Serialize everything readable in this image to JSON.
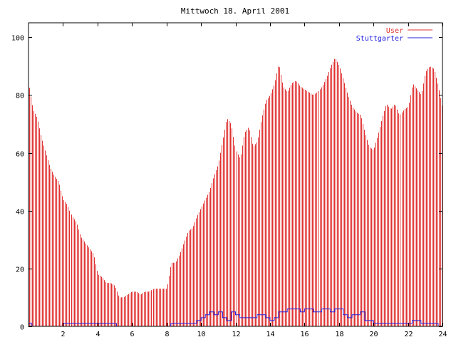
{
  "chart_data": {
    "type": "bar",
    "title": "Mittwoch 18. April 2001",
    "xlabel": "",
    "ylabel": "",
    "xlim": [
      0,
      24
    ],
    "ylim": [
      0,
      105
    ],
    "x_ticks": [
      2,
      4,
      6,
      8,
      10,
      12,
      14,
      16,
      18,
      20,
      22,
      24
    ],
    "y_ticks": [
      0,
      20,
      40,
      60,
      80,
      100
    ],
    "legend_position": "top-right",
    "grid": false,
    "series": [
      {
        "name": "User",
        "type": "bar",
        "color": "#e03030",
        "points": [
          [
            0,
            84
          ],
          [
            0.25,
            75
          ],
          [
            0.5,
            72
          ],
          [
            0.75,
            65
          ],
          [
            1,
            60
          ],
          [
            1.25,
            55
          ],
          [
            1.5,
            52
          ],
          [
            1.75,
            50
          ],
          [
            2,
            44
          ],
          [
            2.25,
            42
          ],
          [
            2.5,
            38
          ],
          [
            2.75,
            36
          ],
          [
            3,
            31
          ],
          [
            3.25,
            29
          ],
          [
            3.5,
            27
          ],
          [
            3.75,
            25
          ],
          [
            4,
            18
          ],
          [
            4.25,
            17
          ],
          [
            4.5,
            15
          ],
          [
            4.75,
            15
          ],
          [
            5,
            14
          ],
          [
            5.25,
            10
          ],
          [
            5.5,
            10
          ],
          [
            5.75,
            11
          ],
          [
            6,
            12
          ],
          [
            6.25,
            12
          ],
          [
            6.5,
            11
          ],
          [
            6.75,
            12
          ],
          [
            7,
            12
          ],
          [
            7.25,
            13
          ],
          [
            7.5,
            13
          ],
          [
            7.75,
            13
          ],
          [
            8,
            13
          ],
          [
            8.25,
            22
          ],
          [
            8.5,
            22
          ],
          [
            8.75,
            25
          ],
          [
            9,
            29
          ],
          [
            9.25,
            33
          ],
          [
            9.5,
            34
          ],
          [
            9.75,
            38
          ],
          [
            10,
            41
          ],
          [
            10.25,
            44
          ],
          [
            10.5,
            47
          ],
          [
            10.75,
            52
          ],
          [
            11,
            56
          ],
          [
            11.25,
            64
          ],
          [
            11.5,
            72
          ],
          [
            11.75,
            70
          ],
          [
            12,
            61
          ],
          [
            12.25,
            58
          ],
          [
            12.5,
            67
          ],
          [
            12.75,
            69
          ],
          [
            13,
            62
          ],
          [
            13.25,
            64
          ],
          [
            13.5,
            72
          ],
          [
            13.75,
            78
          ],
          [
            14,
            80
          ],
          [
            14.25,
            84
          ],
          [
            14.5,
            91
          ],
          [
            14.75,
            83
          ],
          [
            15,
            81
          ],
          [
            15.25,
            84
          ],
          [
            15.5,
            85
          ],
          [
            15.75,
            83
          ],
          [
            16,
            82
          ],
          [
            16.25,
            81
          ],
          [
            16.5,
            80
          ],
          [
            16.75,
            81
          ],
          [
            17,
            83
          ],
          [
            17.25,
            86
          ],
          [
            17.5,
            90
          ],
          [
            17.75,
            93
          ],
          [
            18,
            90
          ],
          [
            18.25,
            85
          ],
          [
            18.5,
            80
          ],
          [
            18.75,
            76
          ],
          [
            19,
            74
          ],
          [
            19.25,
            73
          ],
          [
            19.5,
            67
          ],
          [
            19.75,
            62
          ],
          [
            20,
            61
          ],
          [
            20.25,
            66
          ],
          [
            20.5,
            72
          ],
          [
            20.75,
            77
          ],
          [
            21,
            75
          ],
          [
            21.25,
            77
          ],
          [
            21.5,
            73
          ],
          [
            21.75,
            75
          ],
          [
            22,
            76
          ],
          [
            22.25,
            84
          ],
          [
            22.5,
            82
          ],
          [
            22.75,
            80
          ],
          [
            23,
            88
          ],
          [
            23.25,
            90
          ],
          [
            23.5,
            89
          ],
          [
            23.75,
            83
          ],
          [
            24,
            75
          ]
        ]
      },
      {
        "name": "Stuttgarter",
        "type": "line",
        "color": "#2020e0",
        "points": [
          [
            0,
            1
          ],
          [
            0.1,
            1
          ],
          [
            0.2,
            0
          ],
          [
            1,
            0
          ],
          [
            1.5,
            0
          ],
          [
            1.9,
            0
          ],
          [
            2,
            1
          ],
          [
            3,
            1
          ],
          [
            4,
            1
          ],
          [
            5,
            1
          ],
          [
            5.1,
            0
          ],
          [
            6,
            0
          ],
          [
            7,
            0
          ],
          [
            8,
            0
          ],
          [
            8.2,
            0
          ],
          [
            8.25,
            1
          ],
          [
            9,
            1
          ],
          [
            9.5,
            1
          ],
          [
            9.75,
            2
          ],
          [
            10,
            3
          ],
          [
            10.25,
            4
          ],
          [
            10.5,
            5
          ],
          [
            10.75,
            4
          ],
          [
            11,
            5
          ],
          [
            11.25,
            3
          ],
          [
            11.5,
            2
          ],
          [
            11.75,
            5
          ],
          [
            12,
            4
          ],
          [
            12.25,
            3
          ],
          [
            12.5,
            3
          ],
          [
            13,
            3
          ],
          [
            13.25,
            4
          ],
          [
            13.5,
            4
          ],
          [
            13.75,
            3
          ],
          [
            14,
            2
          ],
          [
            14.25,
            3
          ],
          [
            14.5,
            5
          ],
          [
            14.75,
            5
          ],
          [
            15,
            6
          ],
          [
            15.5,
            6
          ],
          [
            15.75,
            5
          ],
          [
            16,
            6
          ],
          [
            16.5,
            5
          ],
          [
            17,
            6
          ],
          [
            17.5,
            5
          ],
          [
            17.75,
            6
          ],
          [
            18,
            6
          ],
          [
            18.25,
            4
          ],
          [
            18.5,
            3
          ],
          [
            18.75,
            4
          ],
          [
            19,
            4
          ],
          [
            19.25,
            5
          ],
          [
            19.5,
            2
          ],
          [
            19.75,
            2
          ],
          [
            20,
            1
          ],
          [
            21,
            1
          ],
          [
            22,
            1
          ],
          [
            22.25,
            2
          ],
          [
            22.5,
            2
          ],
          [
            22.75,
            1
          ],
          [
            23,
            1
          ],
          [
            23.5,
            1
          ],
          [
            23.75,
            0
          ],
          [
            24,
            1
          ]
        ]
      }
    ]
  }
}
